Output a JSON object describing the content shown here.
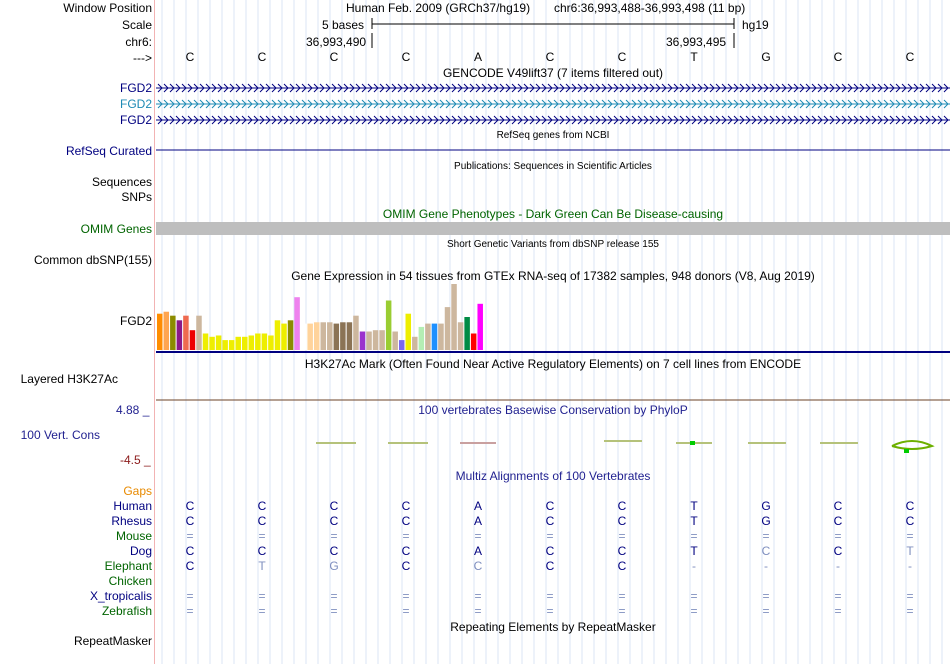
{
  "header": {
    "window_position_label": "Window Position",
    "scale_label": "Scale",
    "chrom_label": "chr6:",
    "arrow_label": "--->",
    "assembly": "Human Feb. 2009 (GRCh37/hg19)",
    "position": "chr6:36,993,488-36,993,498 (11 bp)",
    "scale_text": "5 bases",
    "db": "hg19",
    "coord_left": "36,993,490",
    "coord_right": "36,993,495"
  },
  "bases": [
    "C",
    "C",
    "C",
    "C",
    "A",
    "C",
    "C",
    "T",
    "G",
    "C",
    "C"
  ],
  "gencode": {
    "title": "GENCODE V49lift37 (7 items filtered out)",
    "tracks": [
      {
        "label": "FGD2",
        "color": "#000080"
      },
      {
        "label": "FGD2",
        "color": "#1d8ab4"
      },
      {
        "label": "FGD2",
        "color": "#000080"
      }
    ]
  },
  "refseq": {
    "title": "RefSeq genes from NCBI",
    "label": "RefSeq Curated"
  },
  "publications": {
    "title": "Publications: Sequences in Scientific Articles",
    "label1": "Sequences",
    "label2": "SNPs"
  },
  "omim": {
    "title": "OMIM Gene Phenotypes - Dark Green Can Be Disease-causing",
    "label": "OMIM Genes"
  },
  "dbsnp": {
    "title": "Short Genetic Variants from dbSNP release 155",
    "label": "Common dbSNP(155)"
  },
  "gtex": {
    "title": "Gene Expression in 54 tissues from GTEx RNA-seq of 17382 samples, 948 donors (V8, Aug 2019)",
    "label": "FGD2",
    "bars": [
      {
        "v": 0.55,
        "c": "#ff8c00"
      },
      {
        "v": 0.58,
        "c": "#ffa54f"
      },
      {
        "v": 0.52,
        "c": "#8b8b00"
      },
      {
        "v": 0.45,
        "c": "#8b1a89"
      },
      {
        "v": 0.52,
        "c": "#ee6a50"
      },
      {
        "v": 0.3,
        "c": "#ee0000"
      },
      {
        "v": 0.52,
        "c": "#cdb79e"
      },
      {
        "v": 0.25,
        "c": "#eeee00"
      },
      {
        "v": 0.2,
        "c": "#eeee00"
      },
      {
        "v": 0.22,
        "c": "#eeee00"
      },
      {
        "v": 0.15,
        "c": "#eeee00"
      },
      {
        "v": 0.15,
        "c": "#eeee00"
      },
      {
        "v": 0.2,
        "c": "#eeee00"
      },
      {
        "v": 0.2,
        "c": "#eeee00"
      },
      {
        "v": 0.22,
        "c": "#eeee00"
      },
      {
        "v": 0.25,
        "c": "#eeee00"
      },
      {
        "v": 0.25,
        "c": "#eeee00"
      },
      {
        "v": 0.22,
        "c": "#eeee00"
      },
      {
        "v": 0.45,
        "c": "#eeee00"
      },
      {
        "v": 0.4,
        "c": "#eeee00"
      },
      {
        "v": 0.45,
        "c": "#8b8b00"
      },
      {
        "v": 0.8,
        "c": "#ee82ee"
      },
      {
        "v": 0.4,
        "c": "#ffffff"
      },
      {
        "v": 0.4,
        "c": "#ffd39b"
      },
      {
        "v": 0.42,
        "c": "#ffd39b"
      },
      {
        "v": 0.42,
        "c": "#cdb79e"
      },
      {
        "v": 0.42,
        "c": "#cdb79e"
      },
      {
        "v": 0.4,
        "c": "#8b7355"
      },
      {
        "v": 0.42,
        "c": "#8b7355"
      },
      {
        "v": 0.42,
        "c": "#8b7355"
      },
      {
        "v": 0.52,
        "c": "#cdb79e"
      },
      {
        "v": 0.28,
        "c": "#9a32cd"
      },
      {
        "v": 0.28,
        "c": "#cdb79e"
      },
      {
        "v": 0.3,
        "c": "#cdb79e"
      },
      {
        "v": 0.3,
        "c": "#cdb79e"
      },
      {
        "v": 0.75,
        "c": "#9acd32"
      },
      {
        "v": 0.28,
        "c": "#cdb79e"
      },
      {
        "v": 0.15,
        "c": "#7a67ee"
      },
      {
        "v": 0.55,
        "c": "#eeee00"
      },
      {
        "v": 0.2,
        "c": "#cdb79e"
      },
      {
        "v": 0.35,
        "c": "#b4eeb4"
      },
      {
        "v": 0.4,
        "c": "#cdb79e"
      },
      {
        "v": 0.4,
        "c": "#1e90ff"
      },
      {
        "v": 0.4,
        "c": "#cdb79e"
      },
      {
        "v": 0.65,
        "c": "#cdb79e"
      },
      {
        "v": 1.0,
        "c": "#cdb79e"
      },
      {
        "v": 0.42,
        "c": "#cdb79e"
      },
      {
        "v": 0.5,
        "c": "#008b45"
      },
      {
        "v": 0.25,
        "c": "#ff0000"
      },
      {
        "v": 0.7,
        "c": "#ff00ff"
      }
    ]
  },
  "h3k27ac": {
    "title": "H3K27Ac Mark (Often Found Near Active Regulatory Elements) on 7 cell lines from ENCODE",
    "label": "Layered H3K27Ac"
  },
  "phylop": {
    "title": "100 vertebrates Basewise Conservation by PhyloP",
    "label": "100 Vert. Cons",
    "max": "4.88 _",
    "min": "-4.5 _"
  },
  "multiz": {
    "title": "Multiz Alignments of 100 Vertebrates",
    "gaps_label": "Gaps",
    "species": [
      {
        "label": "Human",
        "color": "#000080",
        "row": [
          "C",
          "C",
          "C",
          "C",
          "A",
          "C",
          "C",
          "T",
          "G",
          "C",
          "C"
        ],
        "faint": []
      },
      {
        "label": "Rhesus",
        "color": "#000080",
        "row": [
          "C",
          "C",
          "C",
          "C",
          "A",
          "C",
          "C",
          "T",
          "G",
          "C",
          "C"
        ],
        "faint": []
      },
      {
        "label": "Mouse",
        "color": "#006400",
        "row": [
          "=",
          "=",
          "=",
          "=",
          "=",
          "=",
          "=",
          "=",
          "=",
          "=",
          "="
        ],
        "faint": []
      },
      {
        "label": "Dog",
        "color": "#000080",
        "row": [
          "C",
          "C",
          "C",
          "C",
          "A",
          "C",
          "C",
          "T",
          "C",
          "C",
          "T"
        ],
        "faint": [
          8,
          10
        ]
      },
      {
        "label": "Elephant",
        "color": "#006400",
        "row": [
          "C",
          "T",
          "G",
          "C",
          "C",
          "C",
          "C",
          "-",
          "-",
          "-",
          "-"
        ],
        "faint": [
          1,
          2,
          4,
          7,
          8,
          9,
          10
        ]
      },
      {
        "label": "Chicken",
        "color": "#006400",
        "row": [
          "",
          "",
          "",
          "",
          "",
          "",
          "",
          "",
          "",
          "",
          ""
        ],
        "faint": []
      },
      {
        "label": "X_tropicalis",
        "color": "#000080",
        "row": [
          "=",
          "=",
          "=",
          "=",
          "=",
          "=",
          "=",
          "=",
          "=",
          "=",
          "="
        ],
        "faint": []
      },
      {
        "label": "Zebrafish",
        "color": "#006400",
        "row": [
          "=",
          "=",
          "=",
          "=",
          "=",
          "=",
          "=",
          "=",
          "=",
          "=",
          "="
        ],
        "faint": []
      }
    ]
  },
  "repeatmasker": {
    "title": "Repeating Elements by RepeatMasker",
    "label": "RepeatMasker"
  }
}
